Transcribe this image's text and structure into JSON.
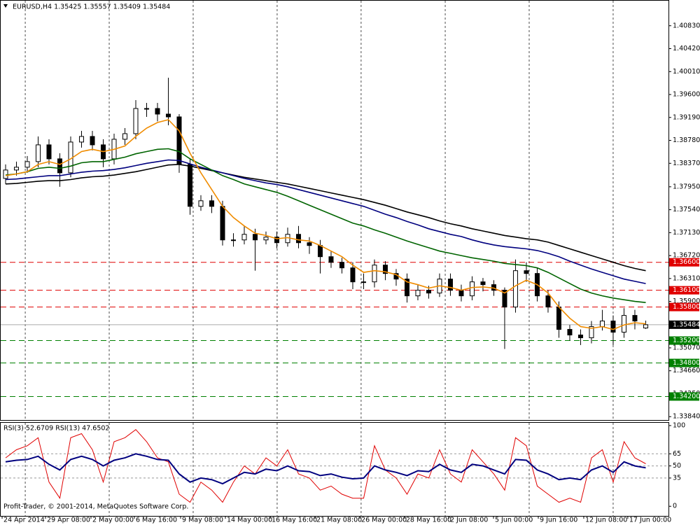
{
  "chart_data": [
    {
      "type": "candlestick",
      "title": "EURUSD,H4  1.35425 1.35557 1.35409 1.35484",
      "xlim": [
        -0.516,
        61.1
      ],
      "xticks": [
        {
          "value": -0.32,
          "label": "24 Apr 2014"
        },
        {
          "value": 3.68,
          "label": "29 Apr 08:00"
        },
        {
          "value": 7.87,
          "label": "2 May 00:00"
        },
        {
          "value": 11.87,
          "label": "6 May 16:00"
        },
        {
          "value": 16.13,
          "label": "9 May 08:00"
        },
        {
          "value": 20.26,
          "label": "14 May 00:00"
        },
        {
          "value": 24.39,
          "label": "16 May 16:00"
        },
        {
          "value": 28.52,
          "label": "21 May 08:00"
        },
        {
          "value": 32.65,
          "label": "26 May 00:00"
        },
        {
          "value": 36.77,
          "label": "28 May 16:00"
        },
        {
          "value": 40.84,
          "label": "2 Jun 08:00"
        },
        {
          "value": 44.97,
          "label": "5 Jun 00:00"
        },
        {
          "value": 49.1,
          "label": "9 Jun 16:00"
        },
        {
          "value": 53.29,
          "label": "12 Jun 08:00"
        },
        {
          "value": 57.35,
          "label": "17 Jun 00:00"
        }
      ],
      "xgrid": [
        1.81,
        9.55,
        17.29,
        25.03,
        32.77,
        40.52,
        48.26,
        56
      ],
      "ylim": [
        1.3378,
        1.4129
      ],
      "yticks": [
        {
          "value": 1.4083,
          "label": "1.40830"
        },
        {
          "value": 1.4042,
          "label": "1.40420"
        },
        {
          "value": 1.4001,
          "label": "1.40010"
        },
        {
          "value": 1.396,
          "label": "1.39600"
        },
        {
          "value": 1.3919,
          "label": "1.39190"
        },
        {
          "value": 1.3878,
          "label": "1.38780"
        },
        {
          "value": 1.3837,
          "label": "1.38370"
        },
        {
          "value": 1.3795,
          "label": "1.37950"
        },
        {
          "value": 1.3754,
          "label": "1.37540"
        },
        {
          "value": 1.3713,
          "label": "1.37130"
        },
        {
          "value": 1.3672,
          "label": "1.36720"
        },
        {
          "value": 1.3631,
          "label": "1.36310"
        },
        {
          "value": 1.359,
          "label": "1.35900"
        },
        {
          "value": 1.3507,
          "label": "1.35070"
        },
        {
          "value": 1.3466,
          "label": "1.34660"
        },
        {
          "value": 1.3425,
          "label": "1.34250"
        },
        {
          "value": 1.3384,
          "label": "1.33840"
        }
      ],
      "levels": [
        {
          "value": 1.366,
          "label": "1.36600",
          "color": "#e00000"
        },
        {
          "value": 1.361,
          "label": "1.36100",
          "color": "#e00000"
        },
        {
          "value": 1.358,
          "label": "1.35800",
          "color": "#e00000"
        },
        {
          "value": 1.352,
          "label": "1.35200",
          "color": "#008000"
        },
        {
          "value": 1.348,
          "label": "1.34800",
          "color": "#008000"
        },
        {
          "value": 1.342,
          "label": "1.34200",
          "color": "#008000"
        }
      ],
      "current": {
        "value": 1.35484,
        "label": "1.35484",
        "color": "#000000"
      },
      "open": [
        1.381,
        1.3825,
        1.383,
        1.384,
        1.387,
        1.3845,
        1.382,
        1.3875,
        1.3885,
        1.387,
        1.3845,
        1.388,
        1.389,
        1.3935,
        1.3935,
        1.3925,
        1.392,
        1.3835,
        1.376,
        1.377,
        1.376,
        1.37,
        1.37,
        1.371,
        1.37,
        1.3705,
        1.3695,
        1.371,
        1.3695,
        1.369,
        1.367,
        1.366,
        1.365,
        1.3625,
        1.3625,
        1.3655,
        1.364,
        1.363,
        1.36,
        1.361,
        1.3605,
        1.363,
        1.361,
        1.36,
        1.3625,
        1.362,
        1.361,
        1.358,
        1.3645,
        1.364,
        1.36,
        1.358,
        1.354,
        1.353,
        1.3525,
        1.3545,
        1.3555,
        1.3535,
        1.3565,
        1.35425
      ],
      "high": [
        1.3835,
        1.384,
        1.385,
        1.3885,
        1.388,
        1.3855,
        1.3885,
        1.3895,
        1.3895,
        1.388,
        1.389,
        1.39,
        1.395,
        1.3945,
        1.3945,
        1.399,
        1.3925,
        1.3845,
        1.378,
        1.378,
        1.377,
        1.3712,
        1.3725,
        1.372,
        1.3715,
        1.3715,
        1.3722,
        1.3725,
        1.3705,
        1.37,
        1.368,
        1.3668,
        1.366,
        1.364,
        1.3665,
        1.3662,
        1.3648,
        1.364,
        1.362,
        1.3618,
        1.364,
        1.364,
        1.362,
        1.3635,
        1.3632,
        1.3628,
        1.3615,
        1.3665,
        1.366,
        1.365,
        1.361,
        1.359,
        1.3548,
        1.354,
        1.3555,
        1.3575,
        1.3565,
        1.3578,
        1.3575,
        1.35557
      ],
      "low": [
        1.38,
        1.3815,
        1.382,
        1.383,
        1.3835,
        1.3795,
        1.3812,
        1.3865,
        1.386,
        1.383,
        1.3835,
        1.387,
        1.388,
        1.392,
        1.3912,
        1.3905,
        1.382,
        1.3745,
        1.3752,
        1.3748,
        1.369,
        1.3688,
        1.3692,
        1.3645,
        1.3692,
        1.3685,
        1.3688,
        1.3685,
        1.3675,
        1.364,
        1.365,
        1.364,
        1.3612,
        1.3612,
        1.3615,
        1.3628,
        1.3618,
        1.3588,
        1.3592,
        1.3595,
        1.3598,
        1.36,
        1.359,
        1.3592,
        1.3608,
        1.36,
        1.3505,
        1.357,
        1.3625,
        1.359,
        1.357,
        1.3525,
        1.352,
        1.3512,
        1.3515,
        1.3538,
        1.3512,
        1.3525,
        1.354,
        1.35409
      ],
      "close": [
        1.3825,
        1.383,
        1.384,
        1.387,
        1.3845,
        1.382,
        1.3875,
        1.3885,
        1.387,
        1.3845,
        1.388,
        1.389,
        1.3935,
        1.3935,
        1.3925,
        1.392,
        1.3835,
        1.376,
        1.377,
        1.376,
        1.37,
        1.37,
        1.371,
        1.37,
        1.3705,
        1.3695,
        1.371,
        1.3695,
        1.369,
        1.367,
        1.366,
        1.365,
        1.3625,
        1.3625,
        1.3655,
        1.364,
        1.363,
        1.36,
        1.361,
        1.3605,
        1.363,
        1.361,
        1.36,
        1.3625,
        1.362,
        1.361,
        1.358,
        1.3645,
        1.364,
        1.36,
        1.358,
        1.354,
        1.353,
        1.3525,
        1.3545,
        1.3555,
        1.3535,
        1.3565,
        1.3555,
        1.35484
      ],
      "series": [
        {
          "color": "#000000",
          "values": [
            1.38,
            1.3801,
            1.3803,
            1.3805,
            1.3806,
            1.3806,
            1.3808,
            1.3811,
            1.3813,
            1.3814,
            1.3816,
            1.3819,
            1.3822,
            1.3826,
            1.383,
            1.3834,
            1.3835,
            1.3832,
            1.3828,
            1.3824,
            1.382,
            1.3816,
            1.3812,
            1.3809,
            1.3806,
            1.3803,
            1.38,
            1.3796,
            1.3792,
            1.3788,
            1.3784,
            1.378,
            1.3776,
            1.3772,
            1.3767,
            1.3762,
            1.3756,
            1.375,
            1.3745,
            1.374,
            1.3734,
            1.3729,
            1.3725,
            1.372,
            1.3716,
            1.3712,
            1.3708,
            1.3705,
            1.3702,
            1.37,
            1.3696,
            1.369,
            1.3684,
            1.3678,
            1.3672,
            1.3666,
            1.366,
            1.3654,
            1.3649,
            1.3645
          ]
        },
        {
          "color": "#00007f",
          "values": [
            1.3808,
            1.3809,
            1.3811,
            1.3813,
            1.3815,
            1.3815,
            1.3818,
            1.3821,
            1.3823,
            1.3824,
            1.3826,
            1.3829,
            1.3833,
            1.3837,
            1.384,
            1.3843,
            1.3842,
            1.3836,
            1.383,
            1.3825,
            1.382,
            1.3815,
            1.381,
            1.3806,
            1.3802,
            1.3799,
            1.3795,
            1.379,
            1.3785,
            1.378,
            1.3775,
            1.377,
            1.3765,
            1.376,
            1.3753,
            1.3746,
            1.374,
            1.3733,
            1.3727,
            1.372,
            1.3715,
            1.371,
            1.3706,
            1.37,
            1.3695,
            1.3691,
            1.3688,
            1.3686,
            1.3684,
            1.3681,
            1.3676,
            1.367,
            1.3662,
            1.3655,
            1.3648,
            1.3642,
            1.3636,
            1.363,
            1.3626,
            1.3622
          ]
        },
        {
          "color": "#006400",
          "values": [
            1.3816,
            1.3818,
            1.3822,
            1.3828,
            1.383,
            1.3828,
            1.3832,
            1.3838,
            1.384,
            1.384,
            1.3844,
            1.3848,
            1.3854,
            1.3858,
            1.3862,
            1.3863,
            1.3858,
            1.3845,
            1.3835,
            1.3825,
            1.3815,
            1.3808,
            1.38,
            1.3795,
            1.379,
            1.3785,
            1.3778,
            1.377,
            1.3762,
            1.3754,
            1.3746,
            1.3738,
            1.373,
            1.3725,
            1.3718,
            1.3712,
            1.3705,
            1.3698,
            1.3692,
            1.3686,
            1.368,
            1.3676,
            1.3672,
            1.3668,
            1.3665,
            1.3662,
            1.3658,
            1.3656,
            1.3654,
            1.365,
            1.3642,
            1.3632,
            1.3622,
            1.3612,
            1.3605,
            1.36,
            1.3596,
            1.3593,
            1.359,
            1.3588
          ]
        },
        {
          "color": "#f08c00",
          "values": [
            1.3815,
            1.3818,
            1.3822,
            1.3835,
            1.384,
            1.3835,
            1.3845,
            1.3858,
            1.3862,
            1.3858,
            1.3862,
            1.3868,
            1.3885,
            1.39,
            1.391,
            1.3915,
            1.3895,
            1.3855,
            1.382,
            1.379,
            1.376,
            1.374,
            1.3725,
            1.3712,
            1.3708,
            1.3702,
            1.3704,
            1.37,
            1.3698,
            1.369,
            1.368,
            1.367,
            1.3655,
            1.3642,
            1.3645,
            1.3643,
            1.3638,
            1.3625,
            1.362,
            1.3614,
            1.3618,
            1.3615,
            1.361,
            1.3615,
            1.3616,
            1.3614,
            1.3605,
            1.3618,
            1.3628,
            1.362,
            1.3605,
            1.358,
            1.356,
            1.3545,
            1.3542,
            1.3545,
            1.354,
            1.3548,
            1.3552,
            1.355
          ]
        }
      ]
    },
    {
      "type": "line",
      "title": "RSI(3) 52.6709  RSI(13) 47.6502",
      "ylim": [
        -12.8,
        104.3
      ],
      "yticks": [
        100,
        65,
        50,
        35,
        0
      ],
      "series": [
        {
          "color": "#e00000",
          "width": 1,
          "values": [
            60,
            70,
            75,
            85,
            30,
            10,
            85,
            90,
            70,
            30,
            80,
            85,
            95,
            80,
            60,
            55,
            15,
            5,
            30,
            20,
            5,
            30,
            50,
            40,
            60,
            50,
            70,
            40,
            35,
            20,
            25,
            15,
            10,
            10,
            75,
            45,
            35,
            15,
            40,
            35,
            70,
            40,
            30,
            70,
            55,
            40,
            20,
            85,
            75,
            25,
            15,
            5,
            10,
            5,
            60,
            70,
            30,
            80,
            60,
            52.6709
          ]
        },
        {
          "color": "#00007f",
          "width": 2,
          "values": [
            55,
            57,
            58,
            62,
            52,
            45,
            58,
            62,
            58,
            50,
            57,
            60,
            65,
            62,
            58,
            57,
            40,
            30,
            35,
            33,
            28,
            35,
            42,
            40,
            46,
            44,
            50,
            44,
            43,
            38,
            40,
            36,
            34,
            35,
            50,
            45,
            42,
            38,
            44,
            43,
            52,
            45,
            42,
            52,
            50,
            45,
            40,
            58,
            57,
            45,
            40,
            33,
            35,
            33,
            45,
            50,
            42,
            55,
            50,
            47.6502
          ]
        }
      ]
    }
  ],
  "footer": "Profit-Trader, © 2001-2014, MetaQuotes Software Corp."
}
